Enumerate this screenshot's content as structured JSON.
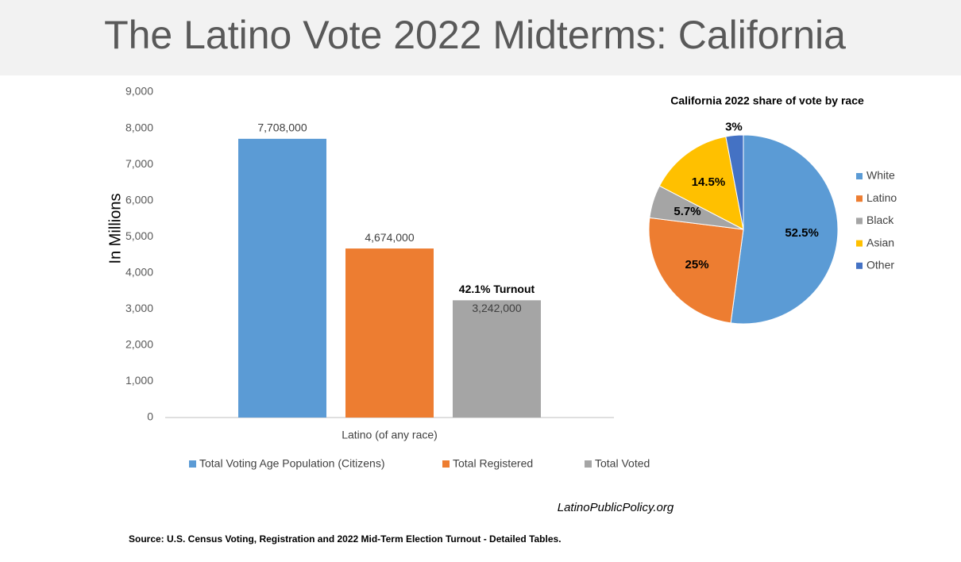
{
  "header": {
    "title": "The Latino Vote 2022 Midterms: California"
  },
  "chart_data": [
    {
      "type": "bar",
      "ylabel": "In Millions",
      "categories": [
        "Latino (of any race)"
      ],
      "series": [
        {
          "name": "Total Voting Age Population (Citizens)",
          "color": "#5b9bd5",
          "values": [
            7708
          ],
          "value_labels": [
            "7,708,000"
          ]
        },
        {
          "name": "Total Registered",
          "color": "#ed7d31",
          "values": [
            4674
          ],
          "value_labels": [
            "4,674,000"
          ]
        },
        {
          "name": "Total Voted",
          "color": "#a5a5a5",
          "values": [
            3242
          ],
          "value_labels": [
            "3,242,000"
          ]
        }
      ],
      "annotation": "42.1% Turnout",
      "ylim": [
        0,
        9000
      ],
      "yticks": [
        0,
        {
          "value": 1000,
          "label": "1,000"
        },
        {
          "value": 2000,
          "label": "2,000"
        },
        {
          "value": 3000,
          "label": "3,000"
        },
        {
          "value": 4000,
          "label": "4,000"
        },
        {
          "value": 5000,
          "label": "5,000"
        },
        {
          "value": 6000,
          "label": "6,000"
        },
        {
          "value": 7000,
          "label": "7,000"
        },
        {
          "value": 8000,
          "label": "8,000"
        },
        {
          "value": 9000,
          "label": "9,000"
        }
      ],
      "grid": false,
      "legend": "bottom"
    },
    {
      "type": "pie",
      "title": "California 2022 share of vote by race",
      "categories": [
        "White",
        "Latino",
        "Black",
        "Asian",
        "Other"
      ],
      "values": [
        52.5,
        25,
        5.7,
        14.5,
        3
      ],
      "value_labels": [
        "52.5%",
        "25%",
        "5.7%",
        "14.5%",
        "3%"
      ],
      "colors": [
        "#5b9bd5",
        "#ed7d31",
        "#a5a5a5",
        "#ffc000",
        "#4472c4"
      ],
      "legend": "right"
    }
  ],
  "footer": {
    "site": "LatinoPublicPolicy.org",
    "source": "Source: U.S. Census Voting, Registration and 2022 Mid-Term Election Turnout - Detailed Tables."
  }
}
